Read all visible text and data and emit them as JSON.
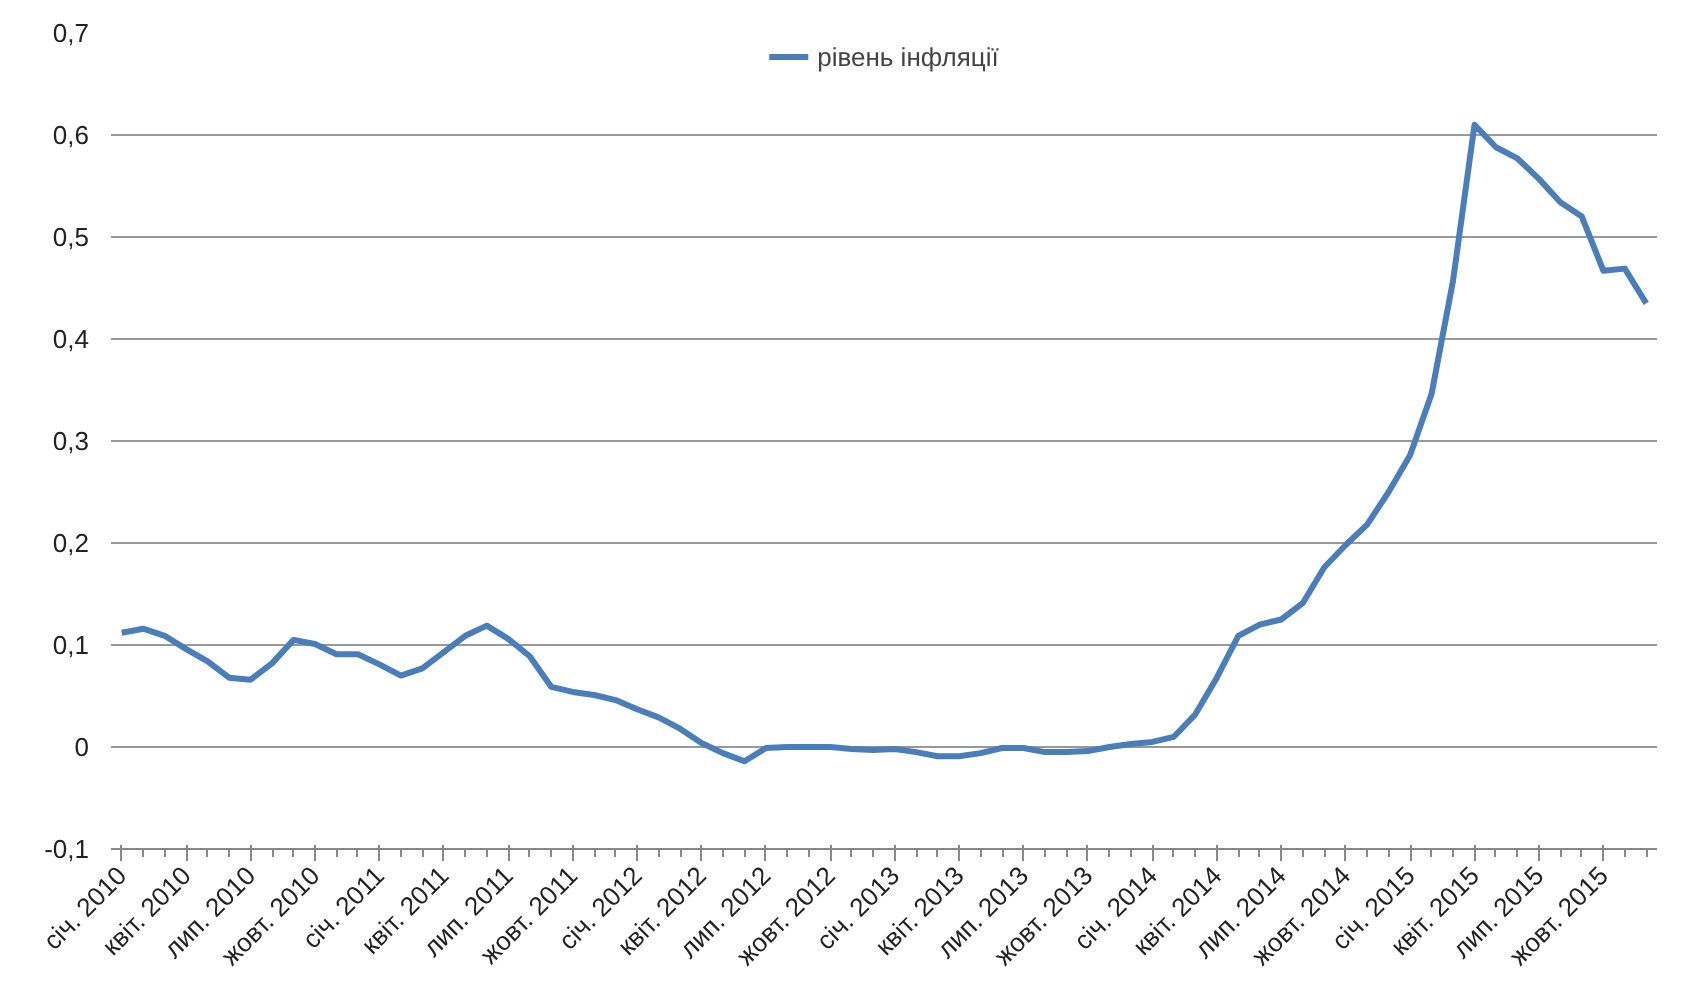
{
  "chart_data": {
    "type": "line",
    "categories": [
      "січ. 2010",
      null,
      null,
      "квіт. 2010",
      null,
      null,
      "лип. 2010",
      null,
      null,
      "жовт. 2010",
      null,
      null,
      "січ. 2011",
      null,
      null,
      "квіт. 2011",
      null,
      null,
      "лип. 2011",
      null,
      null,
      "жовт. 2011",
      null,
      null,
      "січ. 2012",
      null,
      null,
      "квіт. 2012",
      null,
      null,
      "лип. 2012",
      null,
      null,
      "жовт. 2012",
      null,
      null,
      "січ. 2013",
      null,
      null,
      "квіт. 2013",
      null,
      null,
      "лип. 2013",
      null,
      null,
      "жовт. 2013",
      null,
      null,
      "січ. 2014",
      null,
      null,
      "квіт. 2014",
      null,
      null,
      "лип. 2014",
      null,
      null,
      "жовт. 2014",
      null,
      null,
      "січ. 2015",
      null,
      null,
      "квіт. 2015",
      null,
      null,
      "лип. 2015",
      null,
      null,
      "жовт. 2015",
      null,
      null
    ],
    "series": [
      {
        "name": "рівень інфляції",
        "color": "#4a7ebb",
        "values": [
          0.112,
          0.116,
          0.109,
          0.096,
          0.084,
          0.068,
          0.066,
          0.082,
          0.105,
          0.101,
          0.091,
          0.091,
          0.081,
          0.07,
          0.077,
          0.093,
          0.109,
          0.119,
          0.106,
          0.089,
          0.059,
          0.054,
          0.051,
          0.046,
          0.037,
          0.029,
          0.018,
          0.004,
          -0.006,
          -0.014,
          -0.001,
          0,
          0,
          0,
          -0.002,
          -0.003,
          -0.002,
          -0.005,
          -0.009,
          -0.009,
          -0.006,
          -0.001,
          -0.001,
          -0.005,
          -0.005,
          -0.004,
          0,
          0.003,
          0.005,
          0.01,
          0.032,
          0.068,
          0.109,
          0.12,
          0.125,
          0.141,
          0.176,
          0.198,
          0.218,
          0.25,
          0.286,
          0.346,
          0.457,
          0.61,
          0.588,
          0.577,
          0.557,
          0.534,
          0.52,
          0.467,
          0.469,
          0.435
        ]
      }
    ],
    "ylim": [
      -0.1,
      0.7
    ],
    "yticks": [
      {
        "value": -0.1,
        "label": "-0,1"
      },
      0,
      {
        "value": 0.1,
        "label": "0,1"
      },
      {
        "value": 0.2,
        "label": "0,2"
      },
      {
        "value": 0.3,
        "label": "0,3"
      },
      {
        "value": 0.4,
        "label": "0,4"
      },
      {
        "value": 0.5,
        "label": "0,5"
      },
      {
        "value": 0.6,
        "label": "0,6"
      },
      {
        "value": 0.7,
        "label": "0,7"
      }
    ],
    "grid": "y",
    "legend": "top",
    "marker": "none",
    "line_style": "solid"
  }
}
